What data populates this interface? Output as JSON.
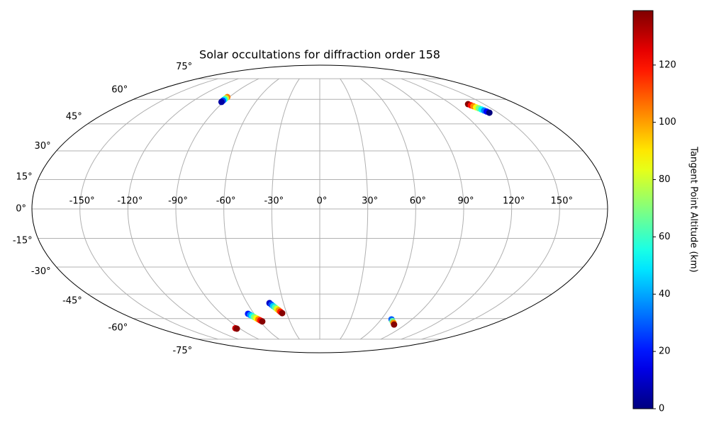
{
  "chart_data": {
    "type": "scatter",
    "projection": "mollweide",
    "title": "Solar occultations for diffraction order 158",
    "xlim": [
      -180,
      180
    ],
    "ylim": [
      -90,
      90
    ],
    "xticks": [
      {
        "value": -150,
        "label": "-150°"
      },
      {
        "value": -120,
        "label": "-120°"
      },
      {
        "value": -90,
        "label": "-90°"
      },
      {
        "value": -60,
        "label": "-60°"
      },
      {
        "value": -30,
        "label": "-30°"
      },
      {
        "value": 0,
        "label": "0°"
      },
      {
        "value": 30,
        "label": "30°"
      },
      {
        "value": 60,
        "label": "60°"
      },
      {
        "value": 90,
        "label": "90°"
      },
      {
        "value": 120,
        "label": "120°"
      },
      {
        "value": 150,
        "label": "150°"
      }
    ],
    "yticks": [
      {
        "value": -75,
        "label": "-75°"
      },
      {
        "value": -60,
        "label": "-60°"
      },
      {
        "value": -45,
        "label": "-45°"
      },
      {
        "value": -30,
        "label": "-30°"
      },
      {
        "value": -15,
        "label": "-15°"
      },
      {
        "value": 0,
        "label": "0°"
      },
      {
        "value": 15,
        "label": "15°"
      },
      {
        "value": 30,
        "label": "30°"
      },
      {
        "value": 45,
        "label": "45°"
      },
      {
        "value": 60,
        "label": "60°"
      },
      {
        "value": 75,
        "label": "75°"
      }
    ],
    "grid": true,
    "colormap": "jet",
    "clim": [
      0,
      139
    ],
    "cticks": [
      0,
      20,
      40,
      60,
      80,
      100,
      120
    ],
    "colorbar_label": "Tangent Point Altitude (km)",
    "series": [
      {
        "x": [
          -92,
          -92,
          -92,
          -92,
          -92,
          135.5,
          136.4,
          137.3,
          138.2,
          139.2,
          140.1,
          141.0,
          141.9,
          142.8,
          -41.6,
          -40.5,
          -39.5,
          -38.4,
          -37.3,
          -36.2,
          -35.2,
          -34.1,
          -65.5,
          -64.4,
          -63.3,
          -62.2,
          -61.0,
          -59.9,
          -58.8,
          -57.7,
          -94.5,
          -93.6,
          70,
          72.7,
          75.4,
          78.1
        ],
        "y": [
          61.5,
          60.7,
          59.9,
          59.1,
          58.3,
          56.9,
          56.2,
          55.6,
          54.9,
          54.3,
          53.6,
          52.9,
          52.3,
          51.6,
          -50.3,
          -51.2,
          -52.1,
          -52.9,
          -53.8,
          -54.7,
          -55.6,
          -56.5,
          -56.9,
          -57.6,
          -58.3,
          -59.0,
          -59.8,
          -60.5,
          -61.2,
          -61.9,
          -66.6,
          -66.9,
          -60.5,
          -61.7,
          -62.8,
          -64.0
        ],
        "c": [
          105,
          78,
          52,
          26,
          5,
          138,
          120,
          103,
          86,
          69,
          52,
          35,
          17,
          0,
          10,
          28,
          46,
          64,
          83,
          101,
          119,
          138,
          20,
          37,
          54,
          71,
          87,
          104,
          121,
          138,
          128,
          138,
          30,
          66,
          102,
          138
        ]
      }
    ]
  }
}
